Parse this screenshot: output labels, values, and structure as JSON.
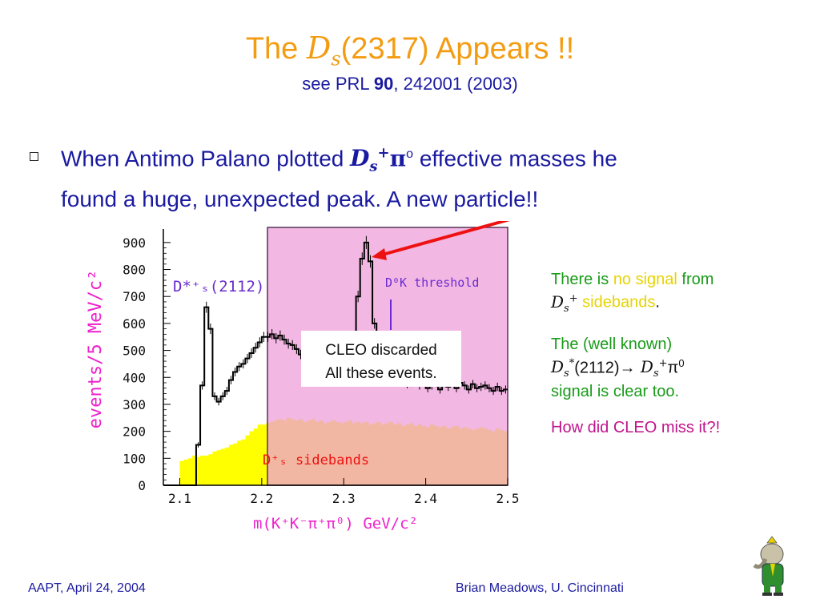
{
  "slide": {
    "title_pre": "The ",
    "title_sym": "D",
    "title_sub": "s",
    "title_post": "(2317) Appears !!",
    "subtitle_pre": "see PRL ",
    "subtitle_bold": "90",
    "subtitle_post": ", 242001 (2003)"
  },
  "bullet": {
    "line1_pre": "When Antimo Palano plotted ",
    "sym": "D",
    "sub": "s",
    "sup": "+",
    "pi": "π",
    "pi_sup": "o",
    "line1_post": " effective masses he",
    "line2": "found a huge, unexpected peak.    A new particle!!"
  },
  "plot": {
    "ylabel": "events/5 MeV/c²",
    "xlabel": "m(K⁺K⁻π⁺π⁰) GeV/c²",
    "x_ticks": [
      "2.1",
      "2.2",
      "2.3",
      "2.4",
      "2.5"
    ],
    "y_ticks": [
      "0",
      "100",
      "200",
      "300",
      "400",
      "500",
      "600",
      "700",
      "800",
      "900"
    ],
    "label_dstar": "D*⁺ₛ(2112)",
    "label_threshold": "D⁰K threshold",
    "label_sidebands": "D⁺ₛ sidebands",
    "callout_line1": "CLEO discarded",
    "callout_line2": "All these events.",
    "colors": {
      "signal": "#000000",
      "sideband": "#ffff00",
      "shade": "#ee9fd8",
      "arrow": "#ee1111",
      "axis_text": "#6a2bd0",
      "ylabel": "#ee22cc"
    }
  },
  "chart_data": {
    "type": "bar",
    "xlabel": "m(K⁺K⁻π⁺π⁰) GeV/c²",
    "ylabel": "events/5 MeV/c²",
    "xlim": [
      2.08,
      2.5
    ],
    "ylim": [
      0,
      950
    ],
    "series": [
      {
        "name": "signal",
        "x": [
          2.08,
          2.085,
          2.09,
          2.095,
          2.1,
          2.105,
          2.11,
          2.115,
          2.12,
          2.125,
          2.13,
          2.135,
          2.14,
          2.145,
          2.15,
          2.155,
          2.16,
          2.165,
          2.17,
          2.175,
          2.18,
          2.185,
          2.19,
          2.195,
          2.2,
          2.205,
          2.21,
          2.215,
          2.22,
          2.225,
          2.23,
          2.235,
          2.24,
          2.245,
          2.25,
          2.255,
          2.26,
          2.265,
          2.27,
          2.275,
          2.28,
          2.285,
          2.29,
          2.295,
          2.3,
          2.305,
          2.31,
          2.315,
          2.32,
          2.325,
          2.33,
          2.335,
          2.34,
          2.345,
          2.35,
          2.355,
          2.36,
          2.365,
          2.37,
          2.375,
          2.38,
          2.385,
          2.39,
          2.395,
          2.4,
          2.405,
          2.41,
          2.415,
          2.42,
          2.425,
          2.43,
          2.435,
          2.44,
          2.445,
          2.45,
          2.455,
          2.46,
          2.465,
          2.47,
          2.475,
          2.48,
          2.485,
          2.49,
          2.495
        ],
        "values": [
          0,
          0,
          0,
          0,
          0,
          0,
          0,
          0,
          150,
          370,
          660,
          580,
          330,
          310,
          330,
          350,
          390,
          420,
          440,
          450,
          470,
          490,
          510,
          530,
          550,
          550,
          560,
          545,
          555,
          540,
          525,
          520,
          505,
          485,
          455,
          470,
          455,
          440,
          425,
          465,
          440,
          460,
          455,
          470,
          445,
          460,
          550,
          700,
          840,
          900,
          830,
          600,
          440,
          415,
          430,
          400,
          390,
          420,
          400,
          375,
          380,
          400,
          370,
          395,
          360,
          370,
          380,
          355,
          380,
          365,
          390,
          360,
          380,
          370,
          355,
          375,
          360,
          365,
          370,
          360,
          350,
          365,
          350,
          355
        ]
      },
      {
        "name": "D⁺ₛ sidebands",
        "x": [
          2.1,
          2.105,
          2.11,
          2.115,
          2.12,
          2.125,
          2.13,
          2.135,
          2.14,
          2.145,
          2.15,
          2.155,
          2.16,
          2.165,
          2.17,
          2.175,
          2.18,
          2.185,
          2.19,
          2.195,
          2.2,
          2.205,
          2.21,
          2.215,
          2.22,
          2.225,
          2.23,
          2.235,
          2.24,
          2.245,
          2.25,
          2.255,
          2.26,
          2.265,
          2.27,
          2.275,
          2.28,
          2.285,
          2.29,
          2.295,
          2.3,
          2.305,
          2.31,
          2.315,
          2.32,
          2.325,
          2.33,
          2.335,
          2.34,
          2.345,
          2.35,
          2.355,
          2.36,
          2.365,
          2.37,
          2.375,
          2.38,
          2.385,
          2.39,
          2.395,
          2.4,
          2.405,
          2.41,
          2.415,
          2.42,
          2.425,
          2.43,
          2.435,
          2.44,
          2.445,
          2.45,
          2.455,
          2.46,
          2.465,
          2.47,
          2.475,
          2.48,
          2.485,
          2.49,
          2.495
        ],
        "values": [
          90,
          95,
          100,
          110,
          105,
          110,
          110,
          115,
          125,
          130,
          135,
          140,
          150,
          155,
          165,
          170,
          185,
          200,
          210,
          225,
          225,
          230,
          235,
          240,
          245,
          240,
          250,
          245,
          240,
          245,
          235,
          240,
          245,
          235,
          240,
          230,
          235,
          240,
          235,
          230,
          235,
          240,
          230,
          235,
          230,
          235,
          225,
          230,
          235,
          225,
          230,
          235,
          225,
          230,
          220,
          225,
          230,
          220,
          225,
          220,
          215,
          225,
          220,
          215,
          220,
          210,
          215,
          220,
          210,
          215,
          210,
          205,
          210,
          215,
          210,
          205,
          200,
          210,
          205,
          200
        ]
      }
    ]
  },
  "notes": {
    "n1_pre": "There is ",
    "n1_hl": "no signal",
    "n1_post": " from",
    "n2_sym": "D",
    "n2_sub": "s",
    "n2_sup": "+",
    "n2_word": " sidebands",
    "n2_dot": ".",
    "n3": "The (well known)",
    "n4_sym": "D",
    "n4_sub": "s",
    "n4_sup": "*",
    "n4_mid": "(2112)",
    "n4_arrow": "→",
    "n4_sym2": "D",
    "n4_sub2": "s",
    "n4_sup2": "+",
    "n4_pi": "π",
    "n4_pi_sup": "0",
    "n5": "signal is clear too.",
    "n6": "How did CLEO miss it?!"
  },
  "footer": {
    "left": "AAPT, April 24, 2004",
    "right": "Brian Meadows, U. Cincinnati"
  },
  "icons": {
    "babar": "babar-elephant-icon",
    "bullet": "checkbox-bullet-icon"
  }
}
